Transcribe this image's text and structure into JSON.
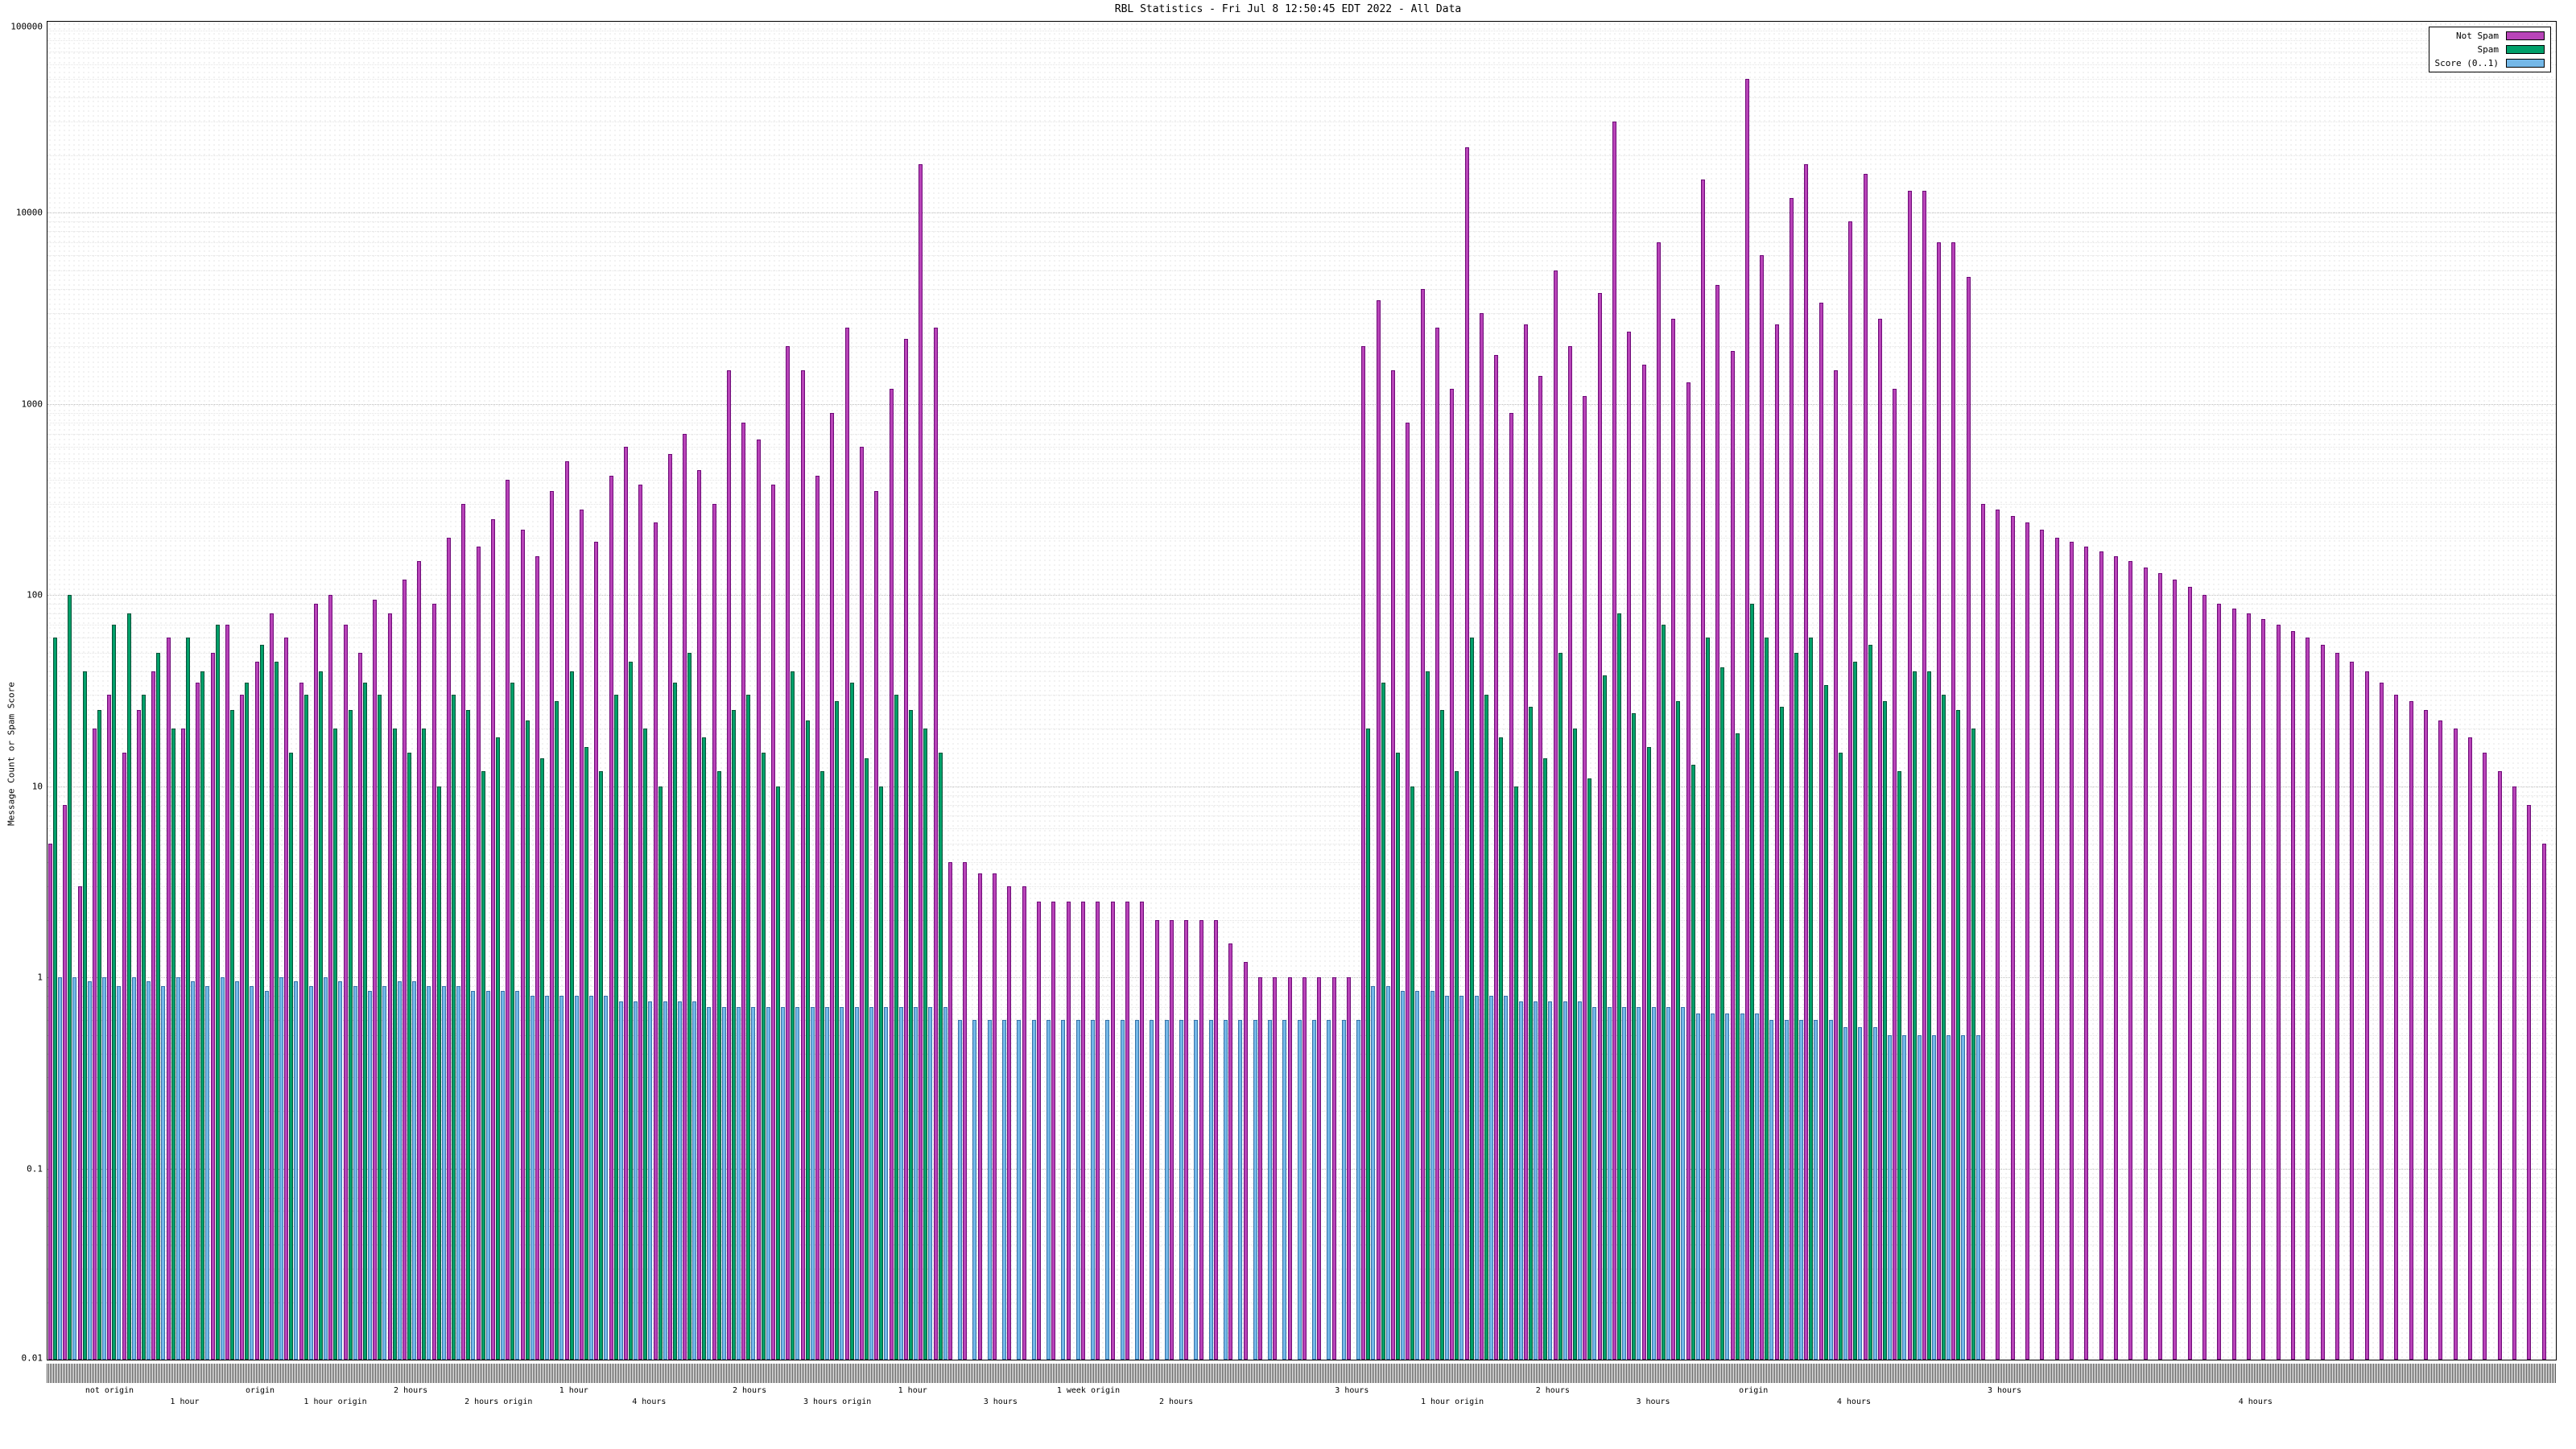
{
  "title": "RBL Statistics - Fri Jul  8 12:50:45 EDT 2022 - All Data",
  "y_axis": {
    "label": "Message Count or Spam Score",
    "scale": "log",
    "min": 0.01,
    "max": 100000,
    "tick_values": [
      100000,
      10000,
      1000,
      100,
      10,
      1,
      0.1,
      0.01
    ],
    "tick_labels": [
      "100000",
      "10000",
      "1000",
      "100",
      "10",
      "1",
      "0.1",
      "0.01"
    ]
  },
  "x_axis": {
    "tick_labels": "illegible dense overlapping host/time labels",
    "group_labels": [
      {
        "text": "not origin",
        "pos": 2.5
      },
      {
        "text": "1 hour",
        "pos": 5.5
      },
      {
        "text": "origin",
        "pos": 8.5
      },
      {
        "text": "1 hour origin",
        "pos": 11.5
      },
      {
        "text": "2 hours",
        "pos": 14.5
      },
      {
        "text": "2 hours origin",
        "pos": 18.0
      },
      {
        "text": "1 hour",
        "pos": 21.0
      },
      {
        "text": "4 hours",
        "pos": 24.0
      },
      {
        "text": "2 hours",
        "pos": 28.0
      },
      {
        "text": "3 hours origin",
        "pos": 31.5
      },
      {
        "text": "1 hour",
        "pos": 34.5
      },
      {
        "text": "3 hours",
        "pos": 38.0
      },
      {
        "text": "1 week origin",
        "pos": 41.5
      },
      {
        "text": "2 hours",
        "pos": 45.0
      },
      {
        "text": "3 hours",
        "pos": 52.0
      },
      {
        "text": "1 hour origin",
        "pos": 56.0
      },
      {
        "text": "2 hours",
        "pos": 60.0
      },
      {
        "text": "3 hours",
        "pos": 64.0
      },
      {
        "text": "origin",
        "pos": 68.0
      },
      {
        "text": "4 hours",
        "pos": 72.0
      },
      {
        "text": "3 hours",
        "pos": 78.0
      },
      {
        "text": "4 hours",
        "pos": 88.0
      }
    ]
  },
  "legend": {
    "position": "top-right",
    "entries": [
      {
        "label": "Not Spam",
        "color": "#b844b8"
      },
      {
        "label": "Spam",
        "color": "#00a06a"
      },
      {
        "label": "Score (0..1)",
        "color": "#74b8e8"
      }
    ]
  },
  "chart_data": {
    "type": "bar",
    "log_y": true,
    "ylim": [
      0.01,
      100000
    ],
    "n_categories": 170,
    "title": "RBL Statistics - Fri Jul  8 12:50:45 EDT 2022 - All Data",
    "xlabel": "",
    "ylabel": "Message Count or Spam Score",
    "series": [
      {
        "name": "Not Spam",
        "color": "#b844b8",
        "values": [
          5,
          8,
          3,
          20,
          30,
          15,
          25,
          40,
          60,
          20,
          35,
          50,
          70,
          30,
          45,
          80,
          60,
          35,
          90,
          100,
          70,
          50,
          95,
          80,
          120,
          150,
          90,
          200,
          300,
          180,
          250,
          400,
          220,
          160,
          350,
          500,
          280,
          190,
          420,
          600,
          380,
          240,
          550,
          700,
          450,
          300,
          1500,
          800,
          650,
          380,
          2000,
          1500,
          420,
          900,
          2500,
          600,
          350,
          1200,
          2200,
          18000,
          2500,
          4,
          4,
          3.5,
          3.5,
          3,
          3,
          2.5,
          2.5,
          2.5,
          2.5,
          2.5,
          2.5,
          2.5,
          2.5,
          2,
          2,
          2,
          2,
          2,
          1.5,
          1.2,
          1,
          1,
          1,
          1,
          1,
          1,
          1,
          2000,
          3500,
          1500,
          800,
          4000,
          2500,
          1200,
          22000,
          3000,
          1800,
          900,
          2600,
          1400,
          5000,
          2000,
          1100,
          3800,
          30000,
          2400,
          1600,
          7000,
          2800,
          1300,
          15000,
          4200,
          1900,
          50000,
          6000,
          2600,
          12000,
          18000,
          3400,
          1500,
          9000,
          16000,
          2800,
          1200,
          13000,
          13000,
          7000,
          7000,
          4600,
          300,
          280,
          260,
          240,
          220,
          200,
          190,
          180,
          170,
          160,
          150,
          140,
          130,
          120,
          110,
          100,
          90,
          85,
          80,
          75,
          70,
          65,
          60,
          55,
          50,
          45,
          40,
          35,
          30,
          28,
          25,
          22,
          20,
          18,
          15,
          12,
          10,
          8,
          5
        ]
      },
      {
        "name": "Spam",
        "color": "#00a06a",
        "values": [
          60,
          100,
          40,
          25,
          70,
          80,
          30,
          50,
          20,
          60,
          40,
          70,
          25,
          35,
          55,
          45,
          15,
          30,
          40,
          20,
          25,
          35,
          30,
          20,
          15,
          20,
          10,
          30,
          25,
          12,
          18,
          35,
          22,
          14,
          28,
          40,
          16,
          12,
          30,
          45,
          20,
          10,
          35,
          50,
          18,
          12,
          25,
          30,
          15,
          10,
          40,
          22,
          12,
          28,
          35,
          14,
          10,
          30,
          25,
          20,
          15,
          0,
          0,
          0,
          0,
          0,
          0,
          0,
          0,
          0,
          0,
          0,
          0,
          0,
          0,
          0,
          0,
          0,
          0,
          0,
          0,
          0,
          0,
          0,
          0,
          0,
          0,
          0,
          0,
          20,
          35,
          15,
          10,
          40,
          25,
          12,
          60,
          30,
          18,
          10,
          26,
          14,
          50,
          20,
          11,
          38,
          80,
          24,
          16,
          70,
          28,
          13,
          60,
          42,
          19,
          90,
          60,
          26,
          50,
          60,
          34,
          15,
          45,
          55,
          28,
          12,
          40,
          40,
          30,
          25,
          20,
          0,
          0,
          0,
          0,
          0,
          0,
          0,
          0,
          0,
          0,
          0,
          0,
          0,
          0,
          0,
          0,
          0,
          0,
          0,
          0,
          0,
          0,
          0,
          0,
          0,
          0,
          0,
          0,
          0,
          0,
          0,
          0,
          0,
          0,
          0,
          0,
          0,
          0,
          0
        ]
      },
      {
        "name": "Score (0..1)",
        "color": "#74b8e8",
        "values": [
          1,
          1,
          0.95,
          1,
          0.9,
          1,
          0.95,
          0.9,
          1,
          0.95,
          0.9,
          1,
          0.95,
          0.9,
          0.85,
          1,
          0.95,
          0.9,
          1,
          0.95,
          0.9,
          0.85,
          0.9,
          0.95,
          0.95,
          0.9,
          0.9,
          0.9,
          0.85,
          0.85,
          0.85,
          0.85,
          0.8,
          0.8,
          0.8,
          0.8,
          0.8,
          0.8,
          0.75,
          0.75,
          0.75,
          0.75,
          0.75,
          0.75,
          0.7,
          0.7,
          0.7,
          0.7,
          0.7,
          0.7,
          0.7,
          0.7,
          0.7,
          0.7,
          0.7,
          0.7,
          0.7,
          0.7,
          0.7,
          0.7,
          0.7,
          0.6,
          0.6,
          0.6,
          0.6,
          0.6,
          0.6,
          0.6,
          0.6,
          0.6,
          0.6,
          0.6,
          0.6,
          0.6,
          0.6,
          0.6,
          0.6,
          0.6,
          0.6,
          0.6,
          0.6,
          0.6,
          0.6,
          0.6,
          0.6,
          0.6,
          0.6,
          0.6,
          0.6,
          0.9,
          0.9,
          0.85,
          0.85,
          0.85,
          0.8,
          0.8,
          0.8,
          0.8,
          0.8,
          0.75,
          0.75,
          0.75,
          0.75,
          0.75,
          0.7,
          0.7,
          0.7,
          0.7,
          0.7,
          0.7,
          0.7,
          0.65,
          0.65,
          0.65,
          0.65,
          0.65,
          0.6,
          0.6,
          0.6,
          0.6,
          0.6,
          0.55,
          0.55,
          0.55,
          0.5,
          0.5,
          0.5,
          0.5,
          0.5,
          0.5,
          0.5,
          0,
          0,
          0,
          0,
          0,
          0,
          0,
          0,
          0,
          0,
          0,
          0,
          0,
          0,
          0,
          0,
          0,
          0,
          0,
          0,
          0,
          0,
          0,
          0,
          0,
          0,
          0,
          0,
          0,
          0,
          0,
          0,
          0,
          0,
          0,
          0,
          0,
          0,
          0
        ]
      }
    ]
  }
}
